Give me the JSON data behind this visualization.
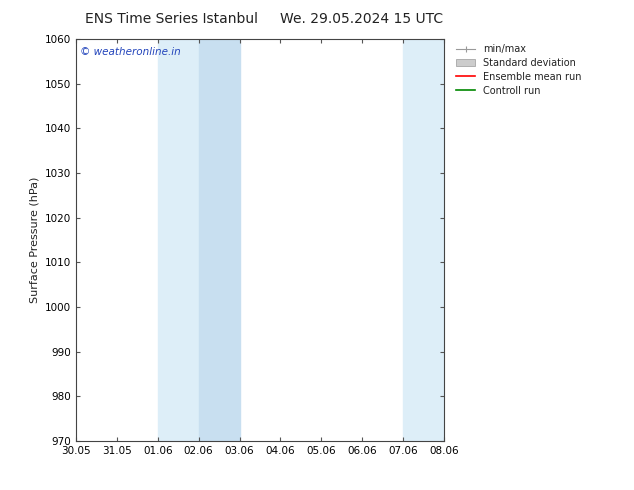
{
  "title_left": "ENS Time Series Istanbul",
  "title_right": "We. 29.05.2024 15 UTC",
  "ylabel": "Surface Pressure (hPa)",
  "ylim": [
    970,
    1060
  ],
  "yticks": [
    970,
    980,
    990,
    1000,
    1010,
    1020,
    1030,
    1040,
    1050,
    1060
  ],
  "xtick_labels": [
    "30.05",
    "31.05",
    "01.06",
    "02.06",
    "03.06",
    "04.06",
    "05.06",
    "06.06",
    "07.06",
    "08.06"
  ],
  "xtick_positions": [
    0,
    1,
    2,
    3,
    4,
    5,
    6,
    7,
    8,
    9
  ],
  "shaded_regions": [
    {
      "x_start": 2,
      "x_end": 2.5
    },
    {
      "x_start": 2.5,
      "x_end": 4
    },
    {
      "x_start": 8,
      "x_end": 9
    }
  ],
  "shaded_color_light": "#ddeef8",
  "shaded_color_dark": "#c8dff0",
  "watermark_text": "© weatheronline.in",
  "watermark_color": "#2244bb",
  "legend_entries": [
    {
      "label": "min/max",
      "color": "#aaaaaa",
      "style": "minmax"
    },
    {
      "label": "Standard deviation",
      "color": "#cccccc",
      "style": "stddev"
    },
    {
      "label": "Ensemble mean run",
      "color": "#ff0000",
      "style": "line"
    },
    {
      "label": "Controll run",
      "color": "#008800",
      "style": "line"
    }
  ],
  "background_color": "#ffffff",
  "font_color": "#222222",
  "title_fontsize": 10,
  "label_fontsize": 8,
  "tick_fontsize": 7.5
}
